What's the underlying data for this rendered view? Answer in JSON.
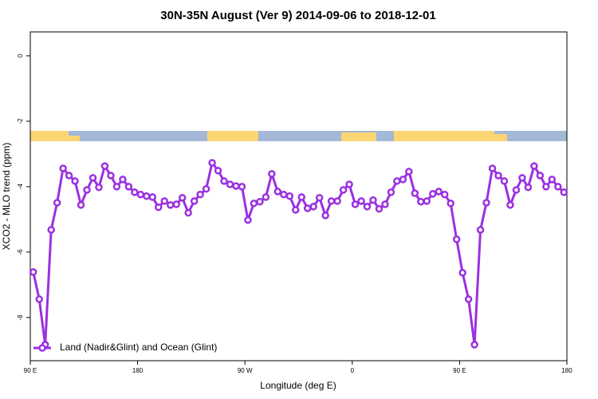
{
  "chart_data": {
    "type": "line",
    "title": "30N-35N August (Ver 9)   2014-09-06 to 2018-12-01",
    "x_label": "Longitude (deg E)",
    "y_label": "XCO2 - MLO trend (ppm)",
    "xlim": [
      90,
      540
    ],
    "xticks": [
      {
        "value": 90,
        "label": "90 E"
      },
      180,
      {
        "value": 270,
        "label": "90 W"
      },
      {
        "value": 360,
        "label": "0"
      },
      {
        "value": 450,
        "label": "90 E"
      },
      {
        "value": 540,
        "label": "180"
      }
    ],
    "ylim": [
      -9.32,
      0.73
    ],
    "yticks": [
      0,
      -2,
      -4,
      -6,
      -8
    ],
    "legend": "bottom-left",
    "x": [
      92.5,
      97.5,
      102.5,
      107.5,
      112.5,
      117.5,
      122.5,
      127.5,
      132.5,
      137.5,
      142.5,
      147.5,
      152.5,
      157.5,
      162.5,
      167.5,
      172.5,
      177.5,
      182.5,
      187.5,
      192.5,
      197.5,
      202.5,
      207.5,
      212.5,
      217.5,
      222.5,
      227.5,
      232.5,
      237.5,
      242.5,
      247.5,
      252.5,
      257.5,
      262.5,
      267.5,
      272.5,
      277.5,
      282.5,
      287.5,
      292.5,
      297.5,
      302.5,
      307.5,
      312.5,
      317.5,
      322.5,
      327.5,
      332.5,
      337.5,
      342.5,
      347.5,
      352.5,
      357.5,
      362.5,
      367.5,
      372.5,
      377.5,
      382.5,
      387.5,
      392.5,
      397.5,
      402.5,
      407.5,
      412.5,
      417.5,
      422.5,
      427.5,
      432.5,
      437.5,
      442.5,
      447.5,
      452.5,
      457.5,
      462.5,
      467.5,
      472.5,
      477.5,
      482.5,
      487.5,
      492.5,
      497.5,
      502.5,
      507.5,
      512.5,
      517.5,
      522.5,
      527.5,
      532.5,
      537.5
    ],
    "series": [
      {
        "name": "Land (Nadir&Glint) and Ocean (Glint)",
        "color": "#9b30e0",
        "values": [
          -6.61,
          -7.44,
          -8.83,
          -5.32,
          -4.49,
          -3.44,
          -3.66,
          -3.83,
          -4.56,
          -4.1,
          -3.73,
          -4.02,
          -3.37,
          -3.66,
          -4.0,
          -3.78,
          -4.0,
          -4.17,
          -4.24,
          -4.29,
          -4.32,
          -4.63,
          -4.44,
          -4.56,
          -4.54,
          -4.34,
          -4.8,
          -4.44,
          -4.24,
          -4.07,
          -3.27,
          -3.51,
          -3.83,
          -3.93,
          -3.98,
          -4.0,
          -5.02,
          -4.51,
          -4.46,
          -4.32,
          -3.61,
          -4.15,
          -4.24,
          -4.29,
          -4.71,
          -4.32,
          -4.66,
          -4.61,
          -4.34,
          -4.88,
          -4.44,
          -4.44,
          -4.1,
          -3.93,
          -4.54,
          -4.44,
          -4.61,
          -4.41,
          -4.68,
          -4.54,
          -4.17,
          -3.83,
          -3.78,
          -3.54,
          -4.2,
          -4.46,
          -4.44,
          -4.22,
          -4.15,
          -4.24,
          -4.51,
          -5.61,
          -6.63,
          -7.44,
          -8.83,
          -5.32,
          -4.49,
          -3.44,
          -3.66,
          -3.83,
          -4.56,
          -4.1,
          -3.73,
          -4.02,
          -3.37,
          -3.66,
          -4.0,
          -3.78,
          -4.0,
          -4.17
        ]
      }
    ]
  }
}
